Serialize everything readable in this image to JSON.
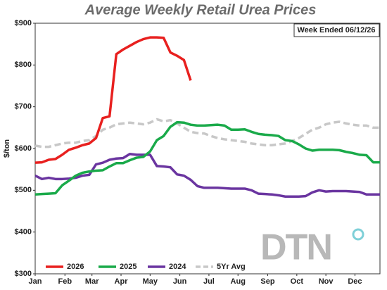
{
  "chart_data": {
    "type": "line",
    "title": "Average Weekly Retail Urea Prices",
    "annotation": "Week Ended 06/12/26",
    "ylabel": "$/ton",
    "watermark": "DTN",
    "ylim": [
      300,
      900
    ],
    "yticks": [
      {
        "value": 300,
        "label": "$300"
      },
      {
        "value": 400,
        "label": "$400"
      },
      {
        "value": 500,
        "label": "$500"
      },
      {
        "value": 600,
        "label": "$600"
      },
      {
        "value": 700,
        "label": "$700"
      },
      {
        "value": 800,
        "label": "$800"
      },
      {
        "value": 900,
        "label": "$900"
      }
    ],
    "xlim": [
      0,
      51
    ],
    "xticks": [
      {
        "value": 0,
        "label": "Jan"
      },
      {
        "value": 4.4,
        "label": "Feb"
      },
      {
        "value": 8.4,
        "label": "Mar"
      },
      {
        "value": 12.7,
        "label": "Apr"
      },
      {
        "value": 17,
        "label": "May"
      },
      {
        "value": 21.4,
        "label": "Jun"
      },
      {
        "value": 25.7,
        "label": "Jul"
      },
      {
        "value": 30,
        "label": "Aug"
      },
      {
        "value": 34.4,
        "label": "Sep"
      },
      {
        "value": 38.7,
        "label": "Oct"
      },
      {
        "value": 43,
        "label": "Nov"
      },
      {
        "value": 47.3,
        "label": "Dec"
      }
    ],
    "grid": false,
    "series": [
      {
        "name": "2026",
        "color": "#e8201f",
        "dashed": false,
        "values": [
          566,
          567,
          573,
          575,
          585,
          597,
          602,
          608,
          612,
          625,
          673,
          677,
          826,
          837,
          846,
          855,
          862,
          866,
          866,
          865,
          830,
          822,
          812,
          763,
          null,
          null,
          null,
          null,
          null,
          null,
          null,
          null,
          null,
          null,
          null,
          null,
          null,
          null,
          null,
          null,
          null,
          null,
          null,
          null,
          null,
          null,
          null,
          null,
          null,
          null,
          null,
          null
        ]
      },
      {
        "name": "2025",
        "color": "#1aaa4a",
        "dashed": false,
        "values": [
          490,
          491,
          492,
          493,
          512,
          523,
          535,
          542,
          545,
          547,
          548,
          557,
          565,
          565,
          572,
          578,
          580,
          593,
          620,
          630,
          652,
          663,
          662,
          657,
          655,
          655,
          656,
          657,
          655,
          645,
          645,
          646,
          640,
          635,
          633,
          632,
          630,
          620,
          618,
          610,
          600,
          595,
          597,
          597,
          597,
          596,
          592,
          589,
          585,
          584,
          567,
          567
        ]
      },
      {
        "name": "2024",
        "color": "#6a35a0",
        "dashed": false,
        "values": [
          535,
          527,
          530,
          527,
          527,
          528,
          530,
          535,
          537,
          562,
          566,
          573,
          576,
          577,
          587,
          585,
          585,
          585,
          558,
          557,
          555,
          538,
          535,
          525,
          510,
          506,
          506,
          506,
          505,
          504,
          504,
          504,
          500,
          492,
          491,
          490,
          488,
          485,
          485,
          485,
          486,
          495,
          500,
          497,
          498,
          498,
          498,
          497,
          496,
          490,
          490,
          490
        ]
      },
      {
        "name": "5Yr Avg",
        "color": "#c8c8c8",
        "dashed": true,
        "values": [
          607,
          604,
          604,
          608,
          612,
          614,
          614,
          618,
          620,
          630,
          645,
          650,
          658,
          660,
          662,
          660,
          658,
          662,
          670,
          665,
          668,
          660,
          650,
          640,
          637,
          636,
          630,
          625,
          622,
          620,
          618,
          616,
          612,
          610,
          608,
          608,
          610,
          612,
          618,
          625,
          635,
          645,
          650,
          658,
          662,
          664,
          660,
          657,
          655,
          655,
          650,
          650
        ]
      }
    ]
  }
}
